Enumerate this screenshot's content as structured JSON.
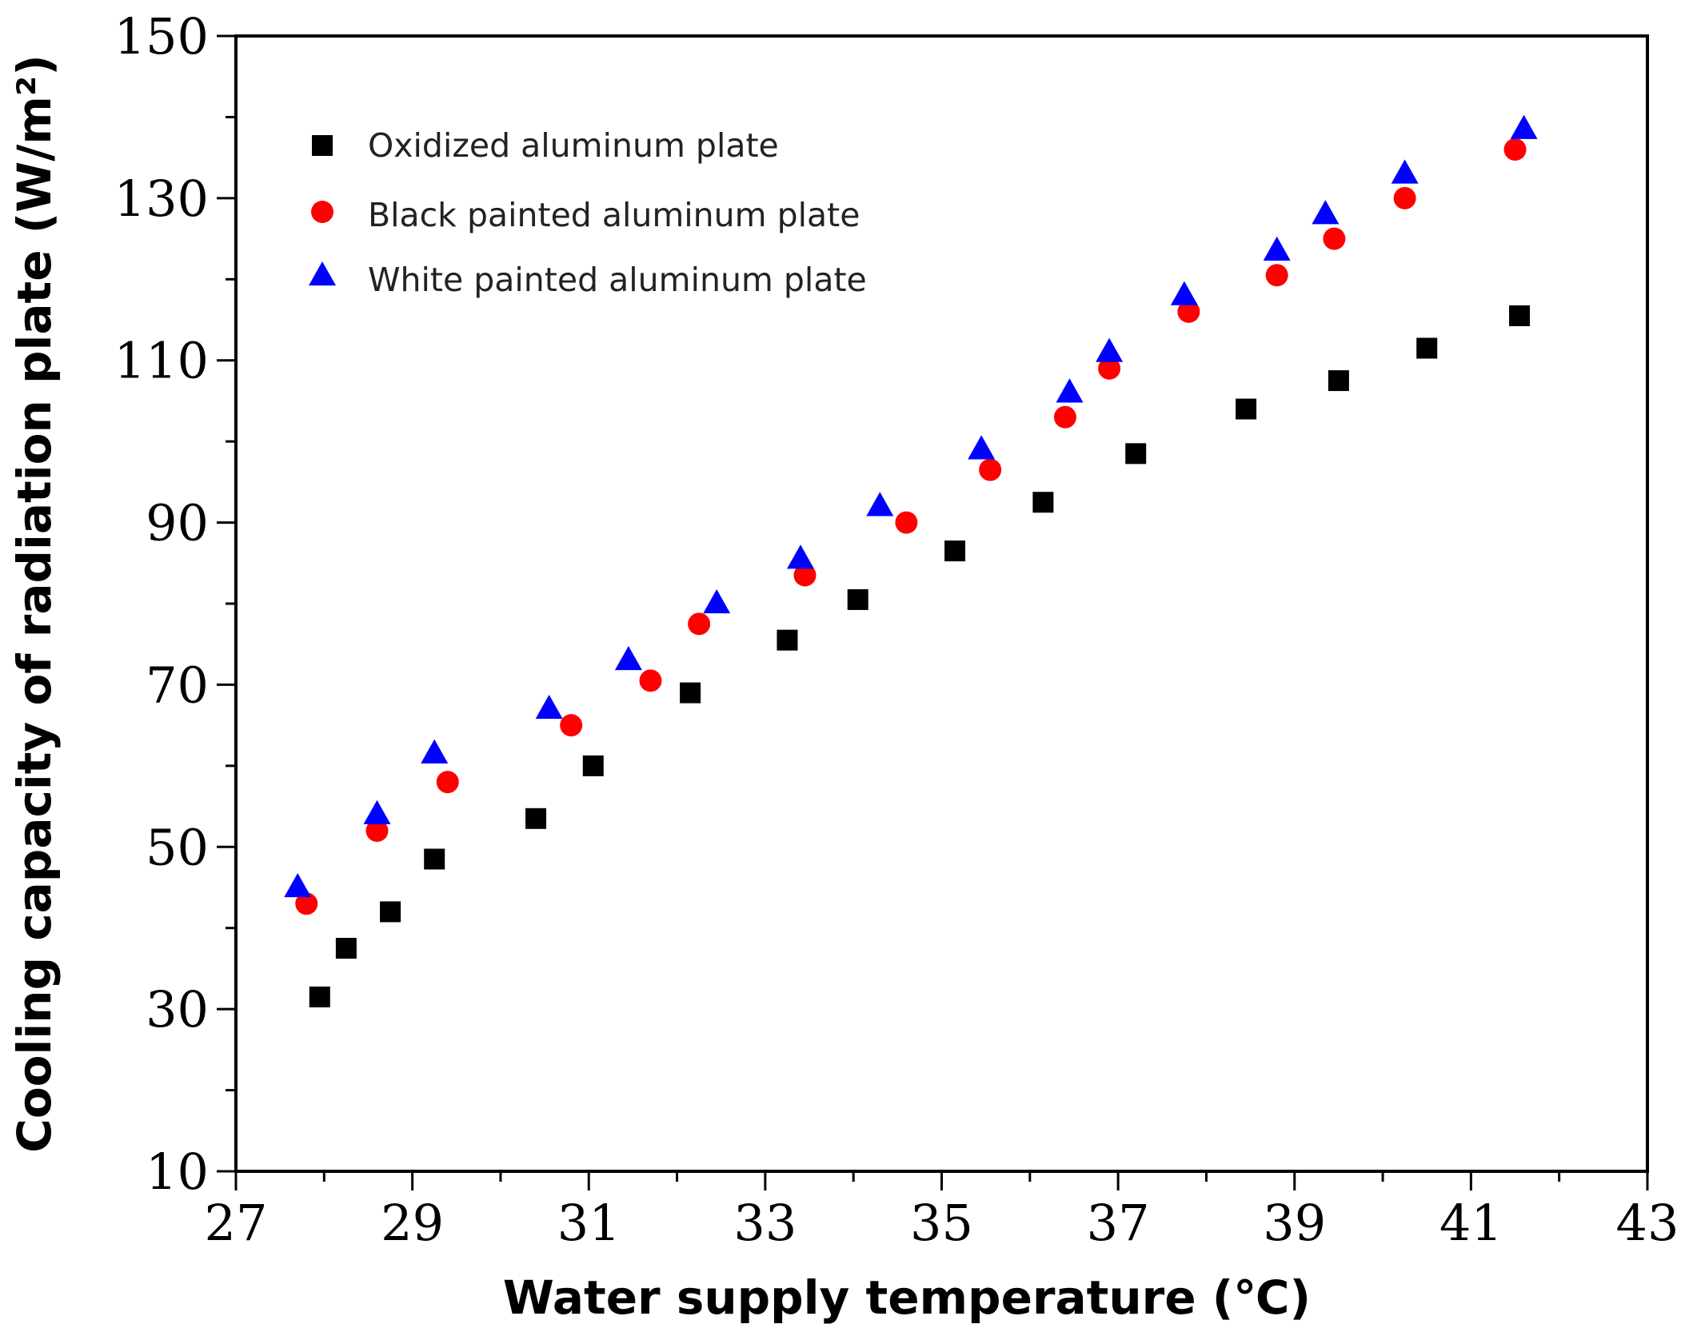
{
  "chart_data": {
    "type": "scatter",
    "xlabel": "Water supply temperature (℃)",
    "ylabel": "Cooling capacity of radiation plate (W/m²)",
    "xlim": [
      27,
      43
    ],
    "ylim": [
      10,
      150
    ],
    "xticks": [
      "27",
      "29",
      "31",
      "33",
      "35",
      "37",
      "39",
      "41",
      "43"
    ],
    "yticks": [
      "10",
      "30",
      "50",
      "70",
      "90",
      "110",
      "130",
      "150"
    ],
    "legend_position": "top-left",
    "grid": false,
    "series": [
      {
        "name": "Oxidized aluminum plate",
        "marker": "square",
        "color": "#000000",
        "x": [
          27.95,
          28.25,
          28.75,
          29.25,
          30.4,
          31.05,
          32.15,
          33.25,
          34.05,
          35.15,
          36.15,
          37.2,
          38.45,
          39.5,
          40.5,
          41.55
        ],
        "y": [
          31.5,
          37.5,
          42,
          48.5,
          53.5,
          60,
          69,
          75.5,
          80.5,
          86.5,
          92.5,
          98.5,
          104,
          107.5,
          111.5,
          115.5
        ]
      },
      {
        "name": "Black painted aluminum plate",
        "marker": "circle",
        "color": "#ff0000",
        "x": [
          27.8,
          28.6,
          29.4,
          30.8,
          31.7,
          32.25,
          33.45,
          34.6,
          35.55,
          36.4,
          36.9,
          37.8,
          38.8,
          39.45,
          40.25,
          41.5
        ],
        "y": [
          43,
          52,
          58,
          65,
          70.5,
          77.5,
          83.5,
          90,
          96.5,
          103,
          109,
          116,
          120.5,
          125,
          130,
          136
        ]
      },
      {
        "name": "White painted aluminum plate",
        "marker": "triangle",
        "color": "#0000ff",
        "x": [
          27.7,
          28.6,
          29.25,
          30.55,
          31.45,
          32.45,
          33.4,
          34.3,
          35.45,
          36.45,
          36.9,
          37.75,
          38.8,
          39.35,
          40.25,
          41.6
        ],
        "y": [
          45,
          54,
          61.5,
          67,
          73,
          80,
          85.5,
          92,
          99,
          106,
          111,
          118,
          123.5,
          128,
          133,
          138.5
        ]
      }
    ]
  }
}
